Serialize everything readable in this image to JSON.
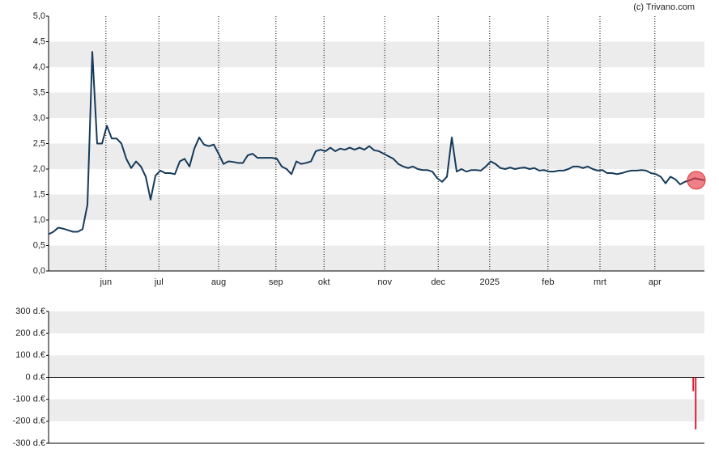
{
  "chart_data": [
    {
      "type": "line",
      "source": "(c) Trivano.com",
      "color": "#163a5a",
      "values": [
        0.72,
        0.77,
        0.85,
        0.83,
        0.8,
        0.77,
        0.77,
        0.82,
        1.3,
        4.3,
        2.5,
        2.5,
        2.85,
        2.6,
        2.6,
        2.5,
        2.2,
        2.02,
        2.15,
        2.05,
        1.85,
        1.4,
        1.87,
        1.97,
        1.92,
        1.92,
        1.9,
        2.15,
        2.2,
        2.05,
        2.4,
        2.62,
        2.48,
        2.45,
        2.48,
        2.3,
        2.1,
        2.15,
        2.14,
        2.12,
        2.12,
        2.27,
        2.3,
        2.22,
        2.22,
        2.22,
        2.22,
        2.2,
        2.05,
        2.0,
        1.9,
        2.15,
        2.1,
        2.12,
        2.15,
        2.35,
        2.38,
        2.35,
        2.42,
        2.35,
        2.4,
        2.38,
        2.42,
        2.38,
        2.42,
        2.38,
        2.45,
        2.37,
        2.35,
        2.3,
        2.25,
        2.2,
        2.1,
        2.05,
        2.02,
        2.05,
        2.0,
        1.98,
        1.98,
        1.95,
        1.82,
        1.75,
        1.85,
        2.62,
        1.95,
        2.0,
        1.95,
        1.98,
        1.98,
        1.97,
        2.05,
        2.15,
        2.1,
        2.02,
        2.0,
        2.03,
        2.0,
        2.02,
        2.03,
        2.0,
        2.02,
        1.97,
        1.98,
        1.95,
        1.95,
        1.97,
        1.97,
        2.0,
        2.05,
        2.05,
        2.02,
        2.05,
        2.0,
        1.97,
        1.98,
        1.92,
        1.92,
        1.9,
        1.92,
        1.95,
        1.97,
        1.97,
        1.98,
        1.97,
        1.92,
        1.9,
        1.85,
        1.72,
        1.85,
        1.8,
        1.7,
        1.75,
        1.78,
        1.82,
        1.8,
        1.78
      ],
      "xlim": [
        0,
        135
      ],
      "xticks": [
        {
          "value": 11.8,
          "label": "jun"
        },
        {
          "value": 22.7,
          "label": "jul"
        },
        {
          "value": 35,
          "label": "aug"
        },
        {
          "value": 46.8,
          "label": "sep"
        },
        {
          "value": 56.7,
          "label": "okt"
        },
        {
          "value": 69.2,
          "label": "nov"
        },
        {
          "value": 80.2,
          "label": "dec"
        },
        {
          "value": 90.8,
          "label": "2025"
        },
        {
          "value": 102.8,
          "label": "feb"
        },
        {
          "value": 113.5,
          "label": "mrt"
        },
        {
          "value": 124.8,
          "label": "apr"
        }
      ],
      "ylim": [
        0,
        5
      ],
      "yticks": [
        {
          "value": 0,
          "label": "0,0"
        },
        {
          "value": 0.5,
          "label": "0,5"
        },
        {
          "value": 1,
          "label": "1,0"
        },
        {
          "value": 1.5,
          "label": "1,5"
        },
        {
          "value": 2,
          "label": "2,0"
        },
        {
          "value": 2.5,
          "label": "2,5"
        },
        {
          "value": 3,
          "label": "3,0"
        },
        {
          "value": 3.5,
          "label": "3,5"
        },
        {
          "value": 4,
          "label": "4,0"
        },
        {
          "value": 4.5,
          "label": "4,5"
        },
        {
          "value": 5,
          "label": "5,0"
        }
      ]
    },
    {
      "type": "bar",
      "color": "#e0203a",
      "x": [
        132.7,
        133.2
      ],
      "values": [
        -63,
        -237
      ],
      "xlim": [
        0,
        135
      ],
      "ylim": [
        -300,
        300
      ],
      "yticks": [
        {
          "value": -300,
          "label": "-300 d.€"
        },
        {
          "value": -200,
          "label": "-200 d.€"
        },
        {
          "value": -100,
          "label": "-100 d.€"
        },
        {
          "value": 0,
          "label": "0 d.€"
        },
        {
          "value": 100,
          "label": "100 d.€"
        },
        {
          "value": 200,
          "label": "200 d.€"
        },
        {
          "value": 300,
          "label": "300 d.€"
        }
      ]
    }
  ]
}
